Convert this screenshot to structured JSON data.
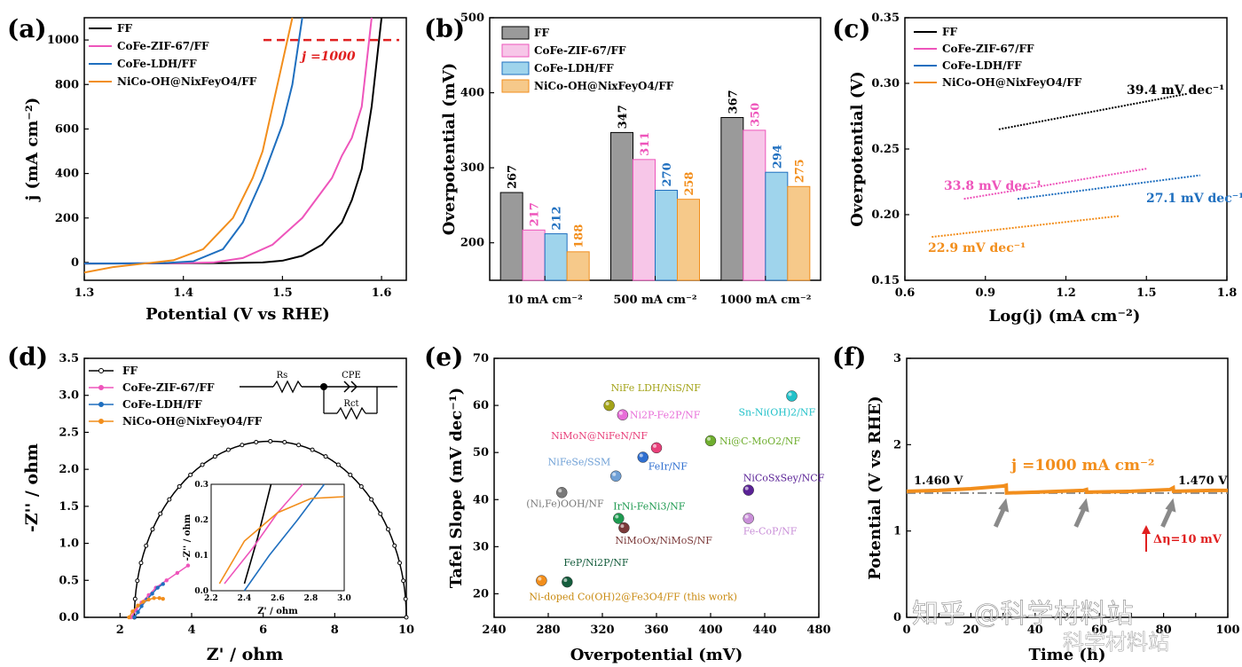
{
  "figure": {
    "watermark_text": "知乎 @科学材料站",
    "watermark_sub": "科学材料站"
  },
  "chart_data": [
    {
      "id": "a",
      "panel_label": "(a)",
      "type": "line",
      "xlabel": "Potential (V vs RHE)",
      "ylabel": "j (mA cm⁻²)",
      "xlim": [
        1.3,
        1.625
      ],
      "ylim": [
        -80,
        1100
      ],
      "xticks": [
        1.3,
        1.4,
        1.5,
        1.6
      ],
      "xtick_labels": [
        "1.3",
        "1.4",
        "1.5",
        "1.6"
      ],
      "yticks": [
        0,
        200,
        400,
        600,
        800,
        1000
      ],
      "ytick_labels": [
        "0",
        "200",
        "400",
        "600",
        "800",
        "1000"
      ],
      "annotation": "j =1000",
      "reference_line_y": 1000,
      "series": [
        {
          "name": "FF",
          "color": "#000000",
          "x": [
            1.3,
            1.44,
            1.48,
            1.5,
            1.52,
            1.54,
            1.56,
            1.57,
            1.58,
            1.59,
            1.6
          ],
          "y": [
            -5,
            -3,
            0,
            8,
            30,
            80,
            180,
            280,
            420,
            700,
            1100
          ]
        },
        {
          "name": "CoFe-ZIF-67/FF",
          "color": "#ee55bb",
          "x": [
            1.3,
            1.4,
            1.43,
            1.46,
            1.49,
            1.52,
            1.55,
            1.56,
            1.57,
            1.58,
            1.59
          ],
          "y": [
            -5,
            -3,
            0,
            20,
            80,
            200,
            380,
            480,
            560,
            700,
            1100
          ]
        },
        {
          "name": "CoFe-LDH/FF",
          "color": "#1f6fbf",
          "x": [
            1.3,
            1.38,
            1.41,
            1.44,
            1.46,
            1.48,
            1.49,
            1.5,
            1.51,
            1.52
          ],
          "y": [
            -5,
            -3,
            5,
            60,
            180,
            380,
            500,
            620,
            800,
            1100
          ]
        },
        {
          "name": "NiCo-OH@NixFeyO4/FF",
          "color": "#f28e1c",
          "x": [
            1.3,
            1.33,
            1.36,
            1.39,
            1.42,
            1.45,
            1.47,
            1.48,
            1.49,
            1.5,
            1.51
          ],
          "y": [
            -45,
            -20,
            -5,
            10,
            60,
            200,
            380,
            500,
            700,
            900,
            1100
          ]
        }
      ]
    },
    {
      "id": "b",
      "panel_label": "(b)",
      "type": "bar",
      "xlabel": "",
      "ylabel": "Overpotential (mV)",
      "ylim": [
        150,
        500
      ],
      "yticks": [
        200,
        300,
        400,
        500
      ],
      "ytick_labels": [
        "200",
        "300",
        "400",
        "500"
      ],
      "categories": [
        "10 mA cm⁻²",
        "500 mA cm⁻²",
        "1000 mA cm⁻²"
      ],
      "series": [
        {
          "name": "FF",
          "color": "#000000",
          "fill": "#9a9a9a",
          "values": [
            267,
            347,
            367
          ],
          "labels": [
            "267",
            "347",
            "367"
          ]
        },
        {
          "name": "CoFe-ZIF-67/FF",
          "color": "#ee55bb",
          "fill": "#f7c6e8",
          "values": [
            217,
            311,
            350
          ],
          "labels": [
            "217",
            "311",
            "350"
          ]
        },
        {
          "name": "CoFe-LDH/FF",
          "color": "#1f6fbf",
          "fill": "#9fd4ec",
          "values": [
            212,
            270,
            294
          ],
          "labels": [
            "212",
            "270",
            "294"
          ]
        },
        {
          "name": "NiCo-OH@NixFeyO4/FF",
          "color": "#f28e1c",
          "fill": "#f6c98a",
          "values": [
            188,
            258,
            275
          ],
          "labels": [
            "188",
            "258",
            "275"
          ]
        }
      ]
    },
    {
      "id": "c",
      "panel_label": "(c)",
      "type": "line",
      "xlabel": "Log(j) (mA cm⁻²)",
      "ylabel": "Overpotential (V)",
      "xlim": [
        0.6,
        1.8
      ],
      "ylim": [
        0.15,
        0.35
      ],
      "xticks": [
        0.6,
        0.9,
        1.2,
        1.5,
        1.8
      ],
      "xtick_labels": [
        "0.6",
        "0.9",
        "1.2",
        "1.5",
        "1.8"
      ],
      "yticks": [
        0.15,
        0.2,
        0.25,
        0.3,
        0.35
      ],
      "ytick_labels": [
        "0.15",
        "0.20",
        "0.25",
        "0.30",
        "0.35"
      ],
      "series": [
        {
          "name": "FF",
          "color": "#000000",
          "x": [
            0.95,
            1.65
          ],
          "y": [
            0.265,
            0.292
          ],
          "slope_label": "39.4 mV dec⁻¹"
        },
        {
          "name": "CoFe-ZIF-67/FF",
          "color": "#ee55bb",
          "x": [
            0.82,
            1.5
          ],
          "y": [
            0.212,
            0.235
          ],
          "slope_label": "33.8 mV dec⁻¹"
        },
        {
          "name": "CoFe-LDH/FF",
          "color": "#1f6fbf",
          "x": [
            1.02,
            1.7
          ],
          "y": [
            0.212,
            0.23
          ],
          "slope_label": "27.1 mV dec⁻¹"
        },
        {
          "name": "NiCo-OH@NixFeyO4/FF",
          "color": "#f28e1c",
          "x": [
            0.7,
            1.4
          ],
          "y": [
            0.183,
            0.199
          ],
          "slope_label": "22.9 mV dec⁻¹"
        }
      ]
    },
    {
      "id": "d",
      "panel_label": "(d)",
      "type": "scatter",
      "xlabel": "Z' / ohm",
      "ylabel": "-Z'' / ohm",
      "xlim": [
        1,
        10
      ],
      "ylim": [
        0,
        3.5
      ],
      "xticks": [
        2,
        4,
        6,
        8,
        10
      ],
      "xtick_labels": [
        "2",
        "4",
        "6",
        "8",
        "10"
      ],
      "yticks": [
        0.0,
        0.5,
        1.0,
        1.5,
        2.0,
        2.5,
        3.0,
        3.5
      ],
      "ytick_labels": [
        "0.0",
        "0.5",
        "1.0",
        "1.5",
        "2.0",
        "2.5",
        "3.0",
        "3.5"
      ],
      "circuit_labels": [
        "Rs",
        "CPE",
        "Rct"
      ],
      "inset": {
        "xlabel": "Z' / ohm",
        "ylabel": "-Z'' / ohm",
        "xlim": [
          2.2,
          3.0
        ],
        "ylim": [
          0,
          0.3
        ],
        "xtick_labels": [
          "2.2",
          "2.4",
          "2.6",
          "2.8",
          "3.0"
        ],
        "ytick_labels": [
          "0.0",
          "0.1",
          "0.2",
          "0.3"
        ]
      },
      "series": [
        {
          "name": "FF",
          "color": "#000000",
          "semicircle": {
            "start": 2.4,
            "end": 10.0,
            "peak": 2.38
          }
        },
        {
          "name": "CoFe-ZIF-67/FF",
          "color": "#ee55bb",
          "x": [
            2.3,
            2.45,
            2.6,
            2.8,
            3.0,
            3.3,
            3.6,
            3.9
          ],
          "y": [
            0.0,
            0.1,
            0.2,
            0.3,
            0.4,
            0.5,
            0.6,
            0.7
          ]
        },
        {
          "name": "CoFe-LDH/FF",
          "color": "#1f6fbf",
          "x": [
            2.4,
            2.5,
            2.6,
            2.75,
            2.9,
            3.05,
            3.2
          ],
          "y": [
            0.0,
            0.07,
            0.15,
            0.24,
            0.32,
            0.4,
            0.45
          ]
        },
        {
          "name": "NiCo-OH@NixFeyO4/FF",
          "color": "#f28e1c",
          "x": [
            2.25,
            2.35,
            2.5,
            2.65,
            2.8,
            2.95,
            3.1,
            3.2
          ],
          "y": [
            0.0,
            0.08,
            0.16,
            0.21,
            0.24,
            0.26,
            0.26,
            0.25
          ]
        }
      ]
    },
    {
      "id": "e",
      "panel_label": "(e)",
      "type": "scatter",
      "xlabel": "Overpotential (mV)",
      "ylabel": "Tafel Slope (mV dec⁻¹)",
      "xlim": [
        240,
        480
      ],
      "ylim": [
        15,
        70
      ],
      "xticks": [
        240,
        280,
        320,
        360,
        400,
        440,
        480
      ],
      "xtick_labels": [
        "240",
        "280",
        "320",
        "360",
        "400",
        "440",
        "480"
      ],
      "yticks": [
        20,
        30,
        40,
        50,
        60,
        70
      ],
      "ytick_labels": [
        "20",
        "30",
        "40",
        "50",
        "60",
        "70"
      ],
      "points": [
        {
          "label": "NiFe LDH/NiS/NF",
          "x": 325,
          "y": 60,
          "color": "#a3a318"
        },
        {
          "label": "Ni2P-Fe2P/NF",
          "x": 335,
          "y": 58,
          "color": "#e86fd8"
        },
        {
          "label": "NiMoN@NiFeN/NF",
          "x": 360,
          "y": 51,
          "color": "#e8407a"
        },
        {
          "label": "FeIr/NF",
          "x": 350,
          "y": 49,
          "color": "#2f6fd0"
        },
        {
          "label": "NiFeSe/SSM",
          "x": 330,
          "y": 45,
          "color": "#6fa0d6"
        },
        {
          "label": "(Ni,Fe)OOH/NF",
          "x": 290,
          "y": 41.5,
          "color": "#7a7a7a"
        },
        {
          "label": "IrNi-FeNi3/NF",
          "x": 332,
          "y": 36,
          "color": "#1e9a50"
        },
        {
          "label": "NiMoOx/NiMoS/NF",
          "x": 336,
          "y": 34,
          "color": "#7a3838"
        },
        {
          "label": "FeP/Ni2P/NF",
          "x": 294,
          "y": 22.5,
          "color": "#145c3c"
        },
        {
          "label": "Ni-doped Co(OH)2@Fe3O4/FF (this work)",
          "x": 275,
          "y": 22.8,
          "color": "#f28e1c"
        },
        {
          "label": "Sn-Ni(OH)2/NF",
          "x": 460,
          "y": 62,
          "color": "#22c1c9"
        },
        {
          "label": "Ni@C-MoO2/NF",
          "x": 400,
          "y": 52.5,
          "color": "#6fae2f"
        },
        {
          "label": "NiCoSxSey/NCF",
          "x": 428,
          "y": 42,
          "color": "#5a2296"
        },
        {
          "label": "Fe-CoP/NF",
          "x": 428,
          "y": 36,
          "color": "#c98fd8"
        }
      ]
    },
    {
      "id": "f",
      "panel_label": "(f)",
      "type": "line",
      "xlabel": "Time (h)",
      "ylabel": "Potential (V vs RHE)",
      "xlim": [
        0,
        100
      ],
      "ylim": [
        0,
        3
      ],
      "xticks": [
        0,
        10,
        20,
        30,
        40,
        50,
        60,
        70,
        80,
        90,
        100
      ],
      "xtick_labels": [
        "0",
        "",
        "20",
        "",
        "40",
        "",
        "60",
        "",
        "80",
        "",
        "100"
      ],
      "yticks": [
        0,
        1,
        2,
        3
      ],
      "ytick_labels": [
        "0",
        "1",
        "2",
        "3"
      ],
      "annotation": "j =1000 mA cm⁻²",
      "start_label": "1.460 V",
      "end_label": "1.470 V",
      "delta_label": "Δη=10 mV",
      "reference_line_y": 1.44,
      "series": [
        {
          "name": "stability",
          "color": "#f28e1c",
          "x": [
            0,
            10,
            20,
            30,
            31,
            31.1,
            40,
            55,
            56,
            56.1,
            70,
            82,
            83,
            83.1,
            95,
            100
          ],
          "y": [
            1.46,
            1.47,
            1.49,
            1.52,
            1.53,
            1.44,
            1.45,
            1.47,
            1.48,
            1.45,
            1.46,
            1.48,
            1.5,
            1.46,
            1.47,
            1.47
          ]
        }
      ],
      "arrow_x": [
        31,
        56,
        83
      ]
    }
  ]
}
